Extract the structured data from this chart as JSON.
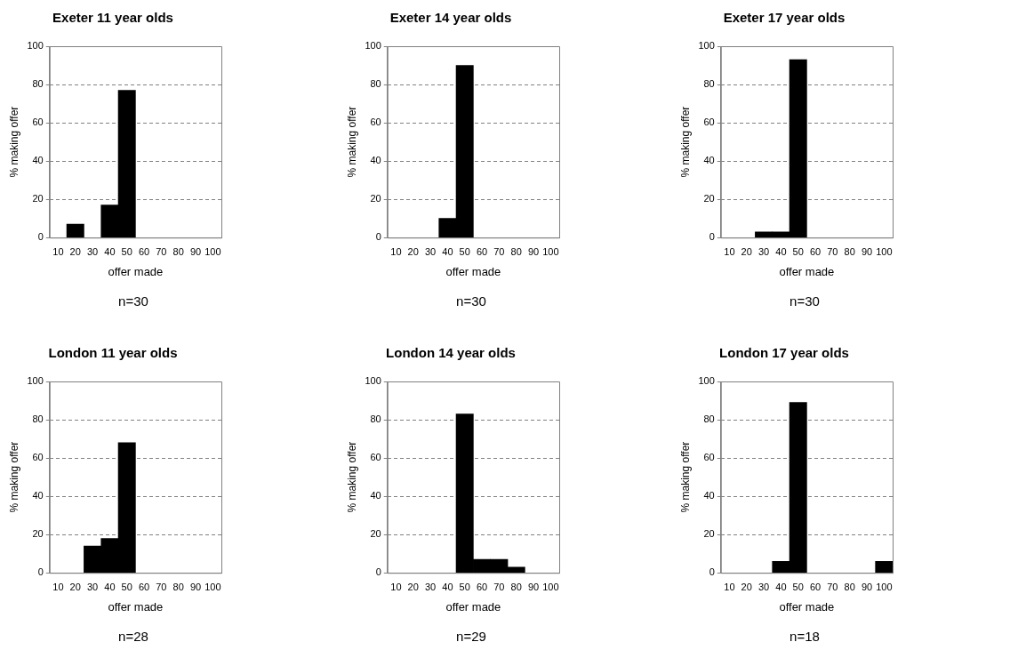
{
  "chart_data": [
    {
      "type": "bar",
      "title": "Exeter 11 year olds",
      "xlabel": "offer made",
      "ylabel": "% making offer",
      "categories": [
        "10",
        "20",
        "30",
        "40",
        "50",
        "60",
        "70",
        "80",
        "90",
        "100"
      ],
      "values": [
        null,
        7,
        null,
        17,
        77,
        null,
        null,
        null,
        null,
        null
      ],
      "color": "#000000",
      "ylim": [
        0,
        100
      ],
      "yticks": [
        0,
        20,
        40,
        60,
        80,
        100
      ],
      "grid": "y",
      "annotations": [
        "n=30"
      ]
    },
    {
      "type": "bar",
      "title": "Exeter 14 year olds",
      "xlabel": "offer made",
      "ylabel": "% making offer",
      "categories": [
        "10",
        "20",
        "30",
        "40",
        "50",
        "60",
        "70",
        "80",
        "90",
        "100"
      ],
      "values": [
        null,
        null,
        null,
        10,
        90,
        null,
        null,
        null,
        null,
        null
      ],
      "color": "#000000",
      "ylim": [
        0,
        100
      ],
      "yticks": [
        0,
        20,
        40,
        60,
        80,
        100
      ],
      "grid": "y",
      "annotations": [
        "n=30"
      ]
    },
    {
      "type": "bar",
      "title": "Exeter 17 year olds",
      "xlabel": "offer made",
      "ylabel": "% making offer",
      "categories": [
        "10",
        "20",
        "30",
        "40",
        "50",
        "60",
        "70",
        "80",
        "90",
        "100"
      ],
      "values": [
        null,
        null,
        3,
        3,
        93,
        null,
        null,
        null,
        null,
        null
      ],
      "color": "#000000",
      "ylim": [
        0,
        100
      ],
      "yticks": [
        0,
        20,
        40,
        60,
        80,
        100
      ],
      "grid": "y",
      "annotations": [
        "n=30"
      ]
    },
    {
      "type": "bar",
      "title": "London 11 year olds",
      "xlabel": "offer made",
      "ylabel": "% making offer",
      "categories": [
        "10",
        "20",
        "30",
        "40",
        "50",
        "60",
        "70",
        "80",
        "90",
        "100"
      ],
      "values": [
        null,
        null,
        14,
        18,
        68,
        null,
        null,
        null,
        null,
        null
      ],
      "color": "#000000",
      "ylim": [
        0,
        100
      ],
      "yticks": [
        0,
        20,
        40,
        60,
        80,
        100
      ],
      "grid": "y",
      "annotations": [
        "n=28"
      ]
    },
    {
      "type": "bar",
      "title": "London 14 year olds",
      "xlabel": "offer made",
      "ylabel": "% making offer",
      "categories": [
        "10",
        "20",
        "30",
        "40",
        "50",
        "60",
        "70",
        "80",
        "90",
        "100"
      ],
      "values": [
        null,
        null,
        null,
        null,
        83,
        7,
        7,
        3,
        null,
        null
      ],
      "color": "#000000",
      "ylim": [
        0,
        100
      ],
      "yticks": [
        0,
        20,
        40,
        60,
        80,
        100
      ],
      "grid": "y",
      "annotations": [
        "n=29"
      ]
    },
    {
      "type": "bar",
      "title": "London 17 year olds",
      "xlabel": "offer made",
      "ylabel": "% making offer",
      "categories": [
        "10",
        "20",
        "30",
        "40",
        "50",
        "60",
        "70",
        "80",
        "90",
        "100"
      ],
      "values": [
        null,
        null,
        null,
        6,
        89,
        null,
        null,
        null,
        null,
        6
      ],
      "color": "#000000",
      "ylim": [
        0,
        100
      ],
      "yticks": [
        0,
        20,
        40,
        60,
        80,
        100
      ],
      "grid": "y",
      "annotations": [
        "n=18"
      ]
    }
  ]
}
